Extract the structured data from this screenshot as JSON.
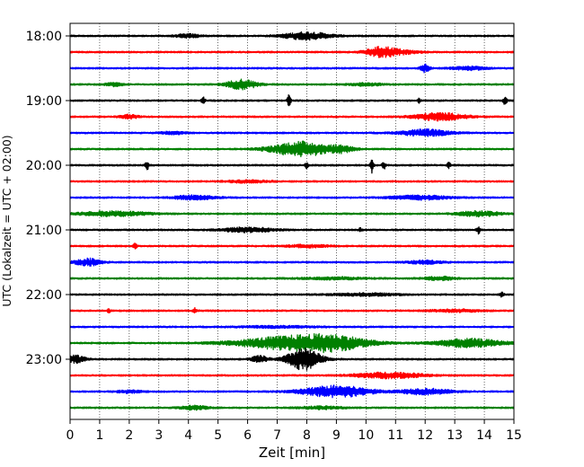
{
  "chart_data": {
    "type": "line",
    "title": "",
    "xlabel": "Zeit  [min]",
    "ylabel": "UTC (Lokalzeit = UTC + 02:00)",
    "xlim": [
      0,
      15
    ],
    "xticks": [
      0,
      1,
      2,
      3,
      4,
      5,
      6,
      7,
      8,
      9,
      10,
      11,
      12,
      13,
      14,
      15
    ],
    "yticks": [
      "18:00",
      "19:00",
      "20:00",
      "21:00",
      "22:00",
      "23:00"
    ],
    "grid": "vertical dotted",
    "color_cycle": [
      "#000000",
      "#ff0000",
      "#0000ff",
      "#008000"
    ],
    "series": [
      {
        "trace_start": "18:00",
        "color": "#000000",
        "bursts": [
          [
            8.0,
            0.55,
            0.45
          ],
          [
            4.0,
            0.3,
            0.2
          ]
        ]
      },
      {
        "trace_start": "18:15",
        "color": "#ff0000",
        "bursts": [
          [
            10.5,
            0.35,
            0.5
          ],
          [
            11.0,
            0.5,
            0.25
          ]
        ]
      },
      {
        "trace_start": "18:30",
        "color": "#0000ff",
        "bursts": [
          [
            12.0,
            0.1,
            0.5
          ],
          [
            13.5,
            0.4,
            0.2
          ]
        ]
      },
      {
        "trace_start": "18:45",
        "color": "#008000",
        "bursts": [
          [
            5.8,
            0.35,
            0.6
          ],
          [
            1.5,
            0.2,
            0.2
          ],
          [
            10.0,
            0.4,
            0.15
          ]
        ]
      },
      {
        "trace_start": "19:00",
        "color": "#000000",
        "spikes": [
          [
            4.5,
            0.7
          ],
          [
            7.4,
            0.8
          ],
          [
            14.7,
            0.7
          ],
          [
            11.8,
            0.3
          ]
        ]
      },
      {
        "trace_start": "19:15",
        "color": "#ff0000",
        "bursts": [
          [
            12.5,
            0.6,
            0.45
          ],
          [
            2.0,
            0.2,
            0.25
          ]
        ]
      },
      {
        "trace_start": "19:30",
        "color": "#0000ff",
        "bursts": [
          [
            12.0,
            0.6,
            0.4
          ],
          [
            3.5,
            0.3,
            0.15
          ]
        ]
      },
      {
        "trace_start": "19:45",
        "color": "#008000",
        "bursts": [
          [
            7.8,
            0.7,
            0.9
          ],
          [
            9.2,
            0.3,
            0.35
          ]
        ]
      },
      {
        "trace_start": "20:00",
        "color": "#000000",
        "spikes": [
          [
            2.6,
            0.7
          ],
          [
            10.2,
            1.0
          ],
          [
            10.6,
            0.7
          ],
          [
            8.0,
            0.4
          ],
          [
            12.8,
            0.4
          ]
        ]
      },
      {
        "trace_start": "20:15",
        "color": "#ff0000",
        "bursts": [
          [
            6.0,
            0.5,
            0.15
          ]
        ]
      },
      {
        "trace_start": "20:30",
        "color": "#0000ff",
        "bursts": [
          [
            4.2,
            0.5,
            0.25
          ],
          [
            11.8,
            0.7,
            0.25
          ]
        ]
      },
      {
        "trace_start": "20:45",
        "color": "#008000",
        "bursts": [
          [
            1.5,
            0.8,
            0.3
          ],
          [
            13.8,
            0.5,
            0.3
          ]
        ]
      },
      {
        "trace_start": "21:00",
        "color": "#000000",
        "bursts": [
          [
            6.0,
            0.6,
            0.3
          ]
        ],
        "spikes": [
          [
            13.8,
            0.5
          ],
          [
            9.8,
            0.3
          ]
        ]
      },
      {
        "trace_start": "21:15",
        "color": "#ff0000",
        "spikes": [
          [
            2.2,
            0.45
          ]
        ],
        "bursts": [
          [
            8.0,
            0.5,
            0.15
          ]
        ]
      },
      {
        "trace_start": "21:30",
        "color": "#0000ff",
        "bursts": [
          [
            0.6,
            0.3,
            0.45
          ],
          [
            12.0,
            0.4,
            0.2
          ]
        ]
      },
      {
        "trace_start": "21:45",
        "color": "#008000",
        "bursts": [
          [
            9.0,
            0.8,
            0.12
          ],
          [
            12.5,
            0.4,
            0.2
          ]
        ]
      },
      {
        "trace_start": "22:00",
        "color": "#000000",
        "spikes": [
          [
            14.6,
            0.35
          ]
        ],
        "bursts": [
          [
            10.0,
            0.8,
            0.15
          ]
        ]
      },
      {
        "trace_start": "22:15",
        "color": "#ff0000",
        "spikes": [
          [
            1.3,
            0.3
          ],
          [
            4.2,
            0.4
          ]
        ],
        "bursts": [
          [
            13.0,
            0.6,
            0.15
          ]
        ]
      },
      {
        "trace_start": "22:30",
        "color": "#0000ff",
        "bursts": [
          [
            7.0,
            1.0,
            0.1
          ]
        ]
      },
      {
        "trace_start": "22:45",
        "color": "#008000",
        "bursts": [
          [
            7.5,
            1.3,
            0.8
          ],
          [
            9.0,
            0.8,
            0.6
          ],
          [
            13.5,
            0.8,
            0.5
          ]
        ]
      },
      {
        "trace_start": "23:00",
        "color": "#000000",
        "bursts": [
          [
            7.9,
            0.4,
            1.3
          ],
          [
            6.4,
            0.2,
            0.4
          ],
          [
            0.2,
            0.2,
            0.5
          ]
        ]
      },
      {
        "trace_start": "23:15",
        "color": "#ff0000",
        "bursts": [
          [
            10.8,
            0.8,
            0.35
          ]
        ]
      },
      {
        "trace_start": "23:30",
        "color": "#0000ff",
        "bursts": [
          [
            9.0,
            0.8,
            0.7
          ],
          [
            12.0,
            0.6,
            0.35
          ],
          [
            2.0,
            0.3,
            0.15
          ]
        ]
      },
      {
        "trace_start": "23:45",
        "color": "#008000",
        "bursts": [
          [
            4.2,
            0.3,
            0.25
          ],
          [
            8.5,
            0.5,
            0.15
          ]
        ]
      }
    ]
  }
}
